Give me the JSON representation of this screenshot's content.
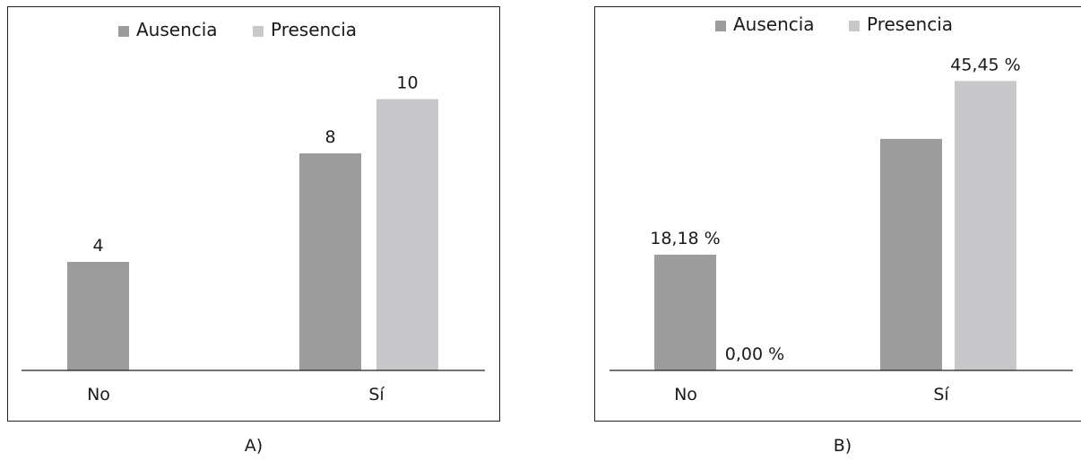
{
  "colors": {
    "ausencia": "#9c9c9d",
    "presencia": "#c8c8ca",
    "axis": "#222222",
    "border": "#222222"
  },
  "chart_data": [
    {
      "type": "bar",
      "caption": "A)",
      "categories": [
        "No",
        "Sí"
      ],
      "series": [
        {
          "name": "Ausencia",
          "values": [
            4,
            8
          ],
          "labels": [
            "4",
            "8"
          ]
        },
        {
          "name": "Presencia",
          "values": [
            0,
            10
          ],
          "labels": [
            "",
            "10"
          ]
        }
      ],
      "ylim": [
        0,
        12
      ],
      "grid": false,
      "legend_position": "top"
    },
    {
      "type": "bar",
      "caption": "B)",
      "categories": [
        "No",
        "Sí"
      ],
      "series": [
        {
          "name": "Ausencia",
          "values": [
            18.18,
            36.36
          ],
          "labels": [
            "18,18 %",
            ""
          ]
        },
        {
          "name": "Presencia",
          "values": [
            0.0,
            45.45
          ],
          "labels": [
            "0,00 %",
            "45,45 %"
          ]
        }
      ],
      "ylim": [
        0,
        50
      ],
      "grid": false,
      "legend_position": "top"
    }
  ]
}
